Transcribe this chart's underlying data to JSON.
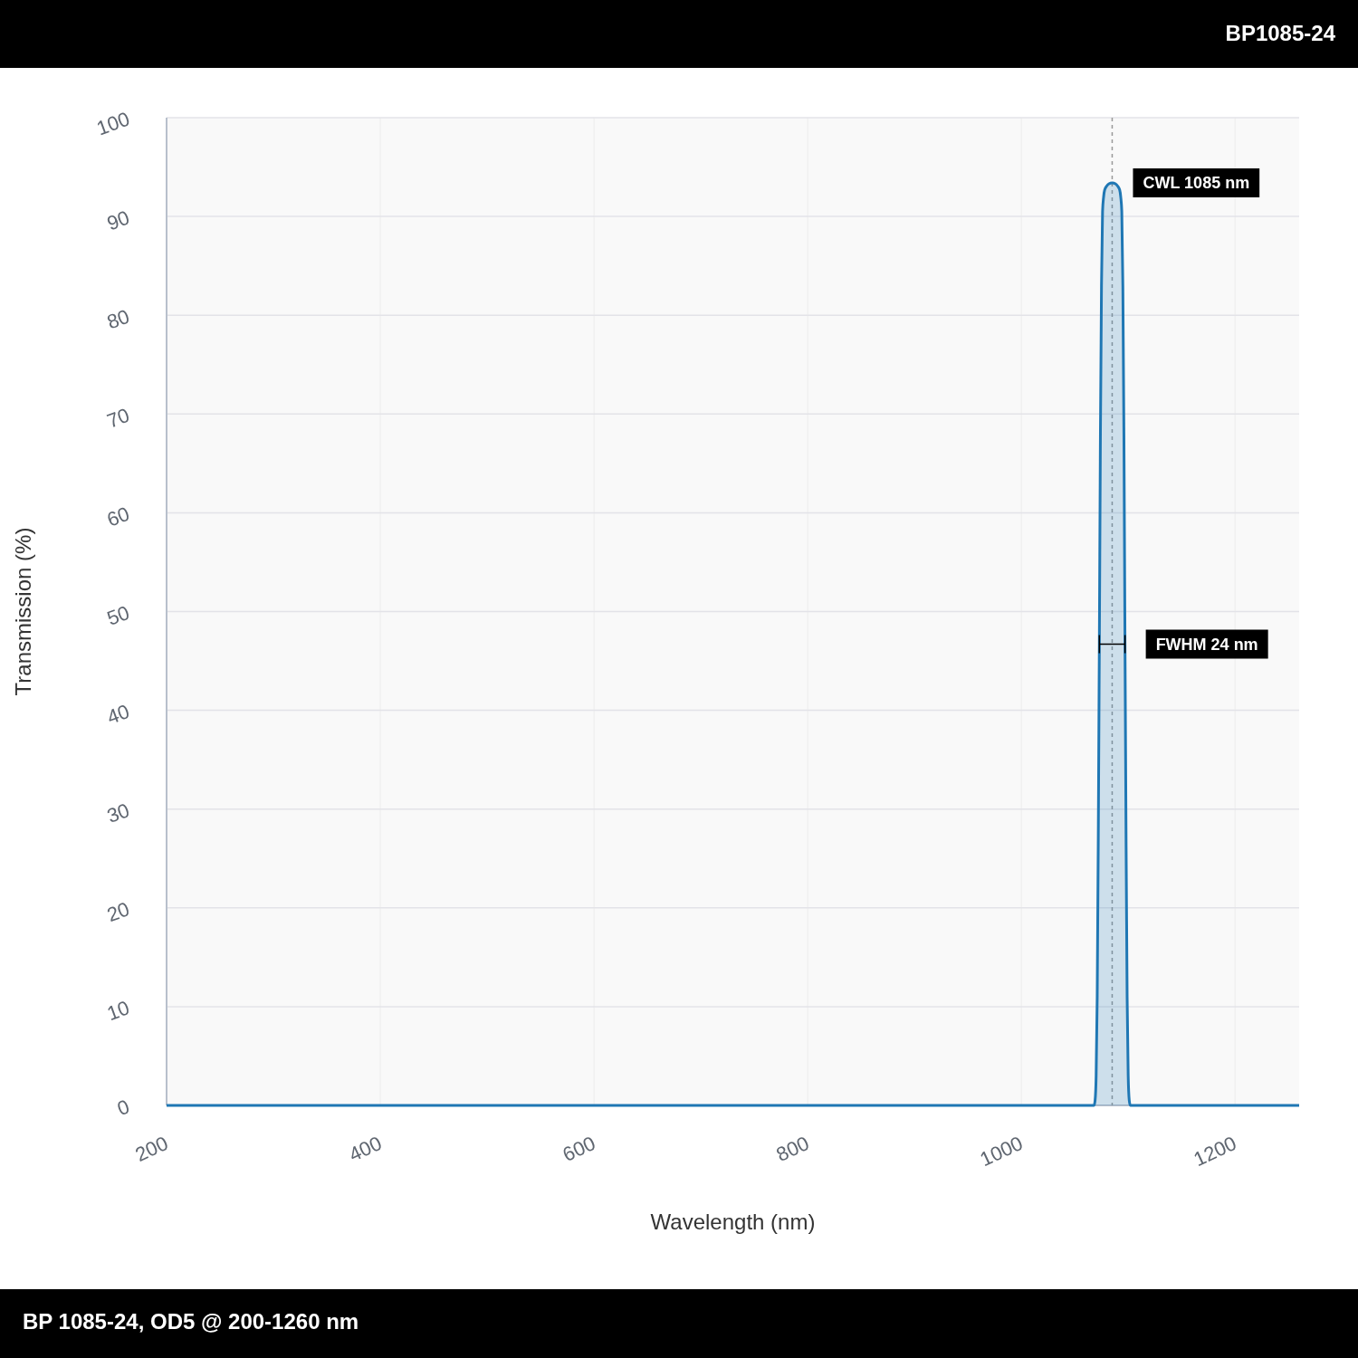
{
  "chart_data": {
    "type": "area",
    "title": "BP1085-24",
    "xlabel": "Wavelength (nm)",
    "ylabel": "Transmission (%)",
    "x": [
      200,
      1068,
      1069,
      1070,
      1071,
      1072,
      1073,
      1074,
      1075,
      1076,
      1077,
      1078,
      1080,
      1082,
      1085,
      1088,
      1090,
      1092,
      1093,
      1094,
      1095,
      1096,
      1097,
      1098,
      1099,
      1100,
      1101,
      1102,
      1260
    ],
    "series": [
      {
        "color": "#1f77b4",
        "values": [
          0,
          0,
          0.5,
          3,
          11,
          27,
          46.7,
          68,
          83,
          90.5,
          92,
          92.7,
          93.1,
          93.3,
          93.4,
          93.3,
          93.1,
          92.7,
          92,
          90.5,
          83,
          68,
          46.7,
          27,
          11,
          3,
          0.5,
          0,
          0
        ]
      }
    ],
    "marker": "none",
    "xlim": [
      200,
      1260
    ],
    "ylim": [
      0,
      100
    ],
    "xticks": [
      200,
      400,
      600,
      800,
      1000,
      1200
    ],
    "yticks": [
      0,
      10,
      20,
      30,
      40,
      50,
      60,
      70,
      80,
      90,
      100
    ],
    "grid": true,
    "ref_lines": [
      {
        "axis": "x",
        "value": 1085,
        "label": "CWL 1085 nm",
        "color": "#999999",
        "line_style": "dashed"
      }
    ],
    "annotations": [
      {
        "text": "FWHM 24 nm",
        "x": 1097,
        "y": 46.7
      },
      "BP 1085-24, OD5 @ 200-1260 nm"
    ]
  }
}
